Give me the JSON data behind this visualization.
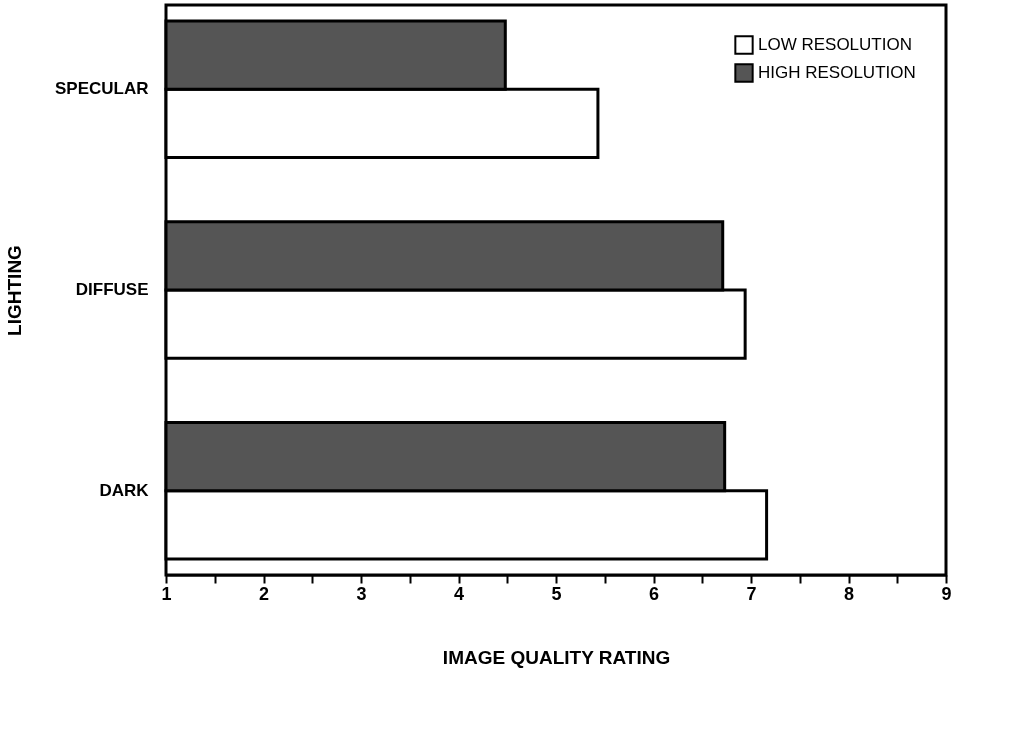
{
  "chart_data": {
    "type": "bar",
    "orientation": "horizontal",
    "xlabel": "IMAGE QUALITY RATING",
    "ylabel": "LIGHTING",
    "categories": [
      "SPECULAR",
      "DIFFUSE",
      "DARK"
    ],
    "series": [
      {
        "name": "LOW RESOLUTION",
        "color": "#ffffff",
        "values": [
          5.43,
          6.94,
          7.16
        ]
      },
      {
        "name": "HIGH RESOLUTION",
        "color": "#555555",
        "values": [
          4.48,
          6.71,
          6.73
        ]
      }
    ],
    "xlim": [
      1,
      9
    ],
    "xticks": [
      1,
      {
        "value": 1.5,
        "label": null
      },
      2,
      {
        "value": 2.5,
        "label": null
      },
      3,
      {
        "value": 3.5,
        "label": null
      },
      4,
      {
        "value": 4.5,
        "label": null
      },
      5,
      {
        "value": 5.5,
        "label": null
      },
      6,
      {
        "value": 6.5,
        "label": null
      },
      7,
      {
        "value": 7.5,
        "label": null
      },
      8,
      {
        "value": 8.5,
        "label": null
      },
      9
    ],
    "legend": "top right",
    "grid": false
  }
}
